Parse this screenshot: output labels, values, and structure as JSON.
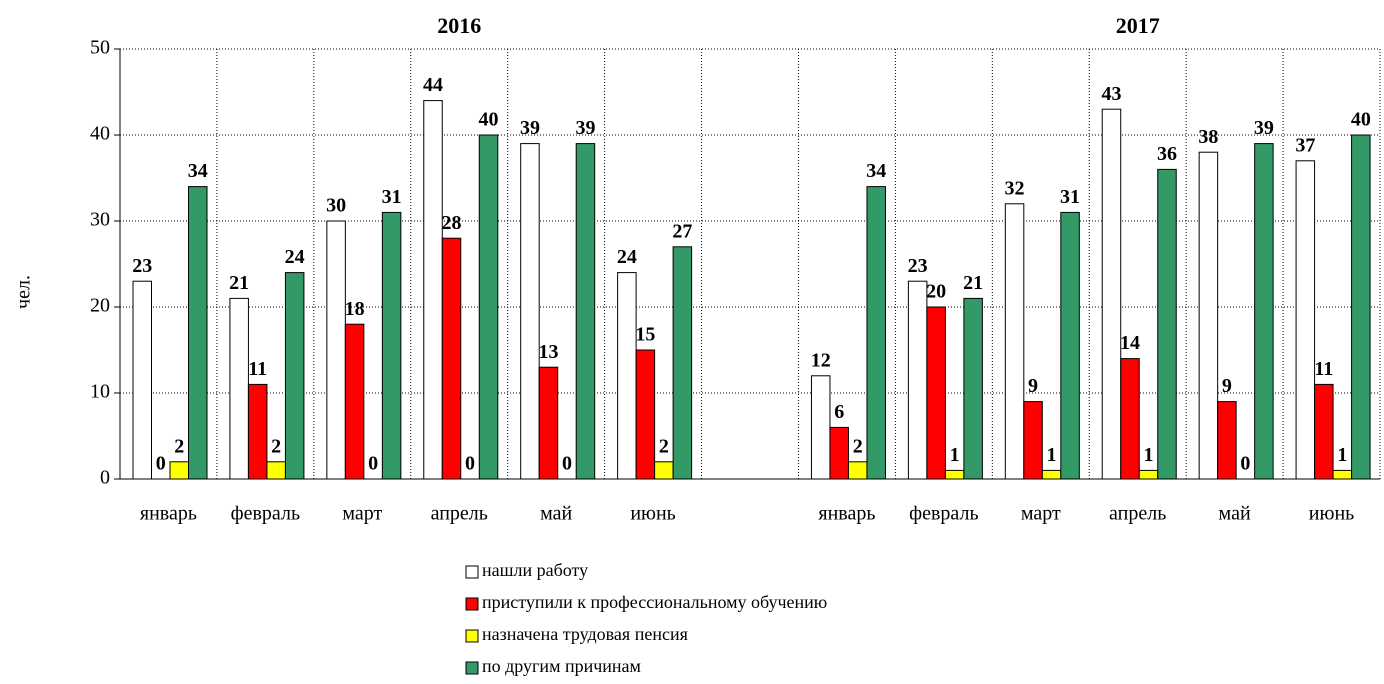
{
  "chart_data": {
    "type": "bar",
    "annotations": [
      "2016",
      "2017"
    ],
    "y_label": "чел.",
    "categories": [
      "январь",
      "февраль",
      "март",
      "апрель",
      "май",
      "июнь",
      null,
      "январь",
      "февраль",
      "март",
      "апрель",
      "май",
      "июнь"
    ],
    "series": [
      {
        "name": "нашли работу",
        "color": "#ffffff",
        "values": [
          23,
          21,
          30,
          44,
          39,
          24,
          null,
          12,
          23,
          32,
          43,
          38,
          37
        ]
      },
      {
        "name": "приступили к профессиональному обучению",
        "color": "#ff0000",
        "values": [
          0,
          11,
          18,
          28,
          13,
          15,
          null,
          6,
          20,
          9,
          14,
          9,
          11
        ]
      },
      {
        "name": "назначена трудовая пенсия",
        "color": "#ffff00",
        "values": [
          2,
          2,
          0,
          0,
          0,
          2,
          null,
          2,
          1,
          1,
          1,
          0,
          1
        ]
      },
      {
        "name": "по другим причинам",
        "color": "#339966",
        "values": [
          34,
          24,
          31,
          40,
          39,
          27,
          null,
          34,
          21,
          31,
          36,
          39,
          40
        ]
      }
    ],
    "ylim": [
      0,
      50
    ],
    "yticks": [
      0,
      10,
      20,
      30,
      40,
      50
    ],
    "grid": true
  }
}
